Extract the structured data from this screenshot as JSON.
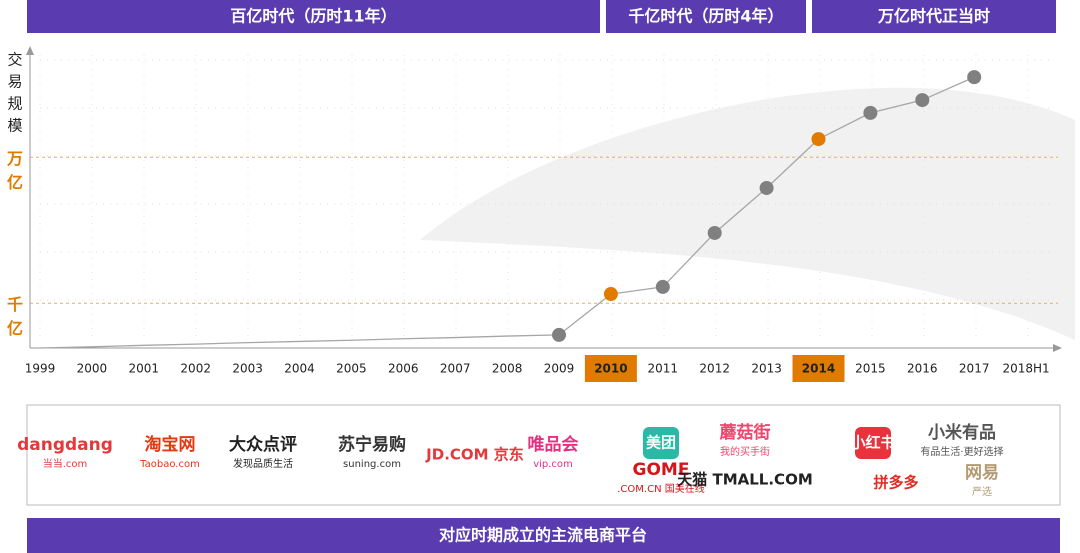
{
  "chart_data": {
    "type": "line",
    "eras": [
      "百亿时代（历时11年）",
      "千亿时代（历时4年）",
      "万亿时代正当时"
    ],
    "y_label": [
      "交",
      "易",
      "规",
      "模"
    ],
    "categories": [
      "1999",
      "2000",
      "2001",
      "2002",
      "2003",
      "2004",
      "2005",
      "2006",
      "2007",
      "2008",
      "2009",
      "2010",
      "2011",
      "2012",
      "2013",
      "2014",
      "2015",
      "2016",
      "2017",
      "2018H1"
    ],
    "series": [
      {
        "color": "#a6a6a6",
        "values": [
          0,
          0.4,
          0.9,
          1.3,
          1.8,
          2.2,
          2.6,
          3.1,
          3.5,
          4.0,
          4.4,
          18.1,
          20.5,
          38.6,
          53.7,
          70.1,
          78.9,
          83.2,
          90.9,
          null
        ],
        "marker_colors": [
          null,
          null,
          null,
          null,
          null,
          null,
          null,
          null,
          null,
          null,
          "#808080",
          "#e07b00",
          "#808080",
          "#808080",
          "#808080",
          "#e07b00",
          "#808080",
          "#808080",
          "#808080",
          null
        ]
      }
    ],
    "highlight_color": "#e07b00",
    "ylim": [
      0,
      100
    ],
    "yticks": [
      {
        "value": 15,
        "label": [
          "千",
          "亿"
        ]
      },
      {
        "value": 64,
        "label": [
          "万",
          "亿"
        ]
      }
    ],
    "platforms": [
      {
        "lines": [
          "dangdang",
          "当当.com"
        ],
        "color": "#e4393c"
      },
      {
        "lines": [
          "淘宝网",
          "Taobao.com"
        ],
        "color": "#e4380e"
      },
      {
        "lines": [
          "大众点评",
          "发现品质生活"
        ],
        "color": "#222222"
      },
      {
        "lines": [
          "苏宁易购",
          "suning.com"
        ],
        "color": "#333333"
      },
      {
        "lines": [
          "JD.COM 京东"
        ],
        "color": "#e4393c"
      },
      {
        "lines": [
          "唯品会",
          "vip.com"
        ],
        "color": "#e5307f"
      },
      {
        "lines": [
          "美团"
        ],
        "color": "#2bb8a6"
      },
      {
        "lines": [
          "蘑菇街",
          "我的买手街"
        ],
        "color": "#f0466e"
      },
      {
        "lines": [
          "GOME",
          ".COM.CN 国美在线"
        ],
        "color": "#d7141a"
      },
      {
        "lines": [
          "天猫 TMALL.COM"
        ],
        "color": "#222222"
      },
      {
        "lines": [
          "小红书"
        ],
        "color": "#e8323c"
      },
      {
        "lines": [
          "小米有品",
          "有品生活·更好选择"
        ],
        "color": "#555555"
      },
      {
        "lines": [
          "拼多多"
        ],
        "color": "#e02e24"
      },
      {
        "lines": [
          "网易",
          "严选"
        ],
        "color": "#b39a73"
      }
    ],
    "footer": "对应时期成立的主流电商平台"
  }
}
